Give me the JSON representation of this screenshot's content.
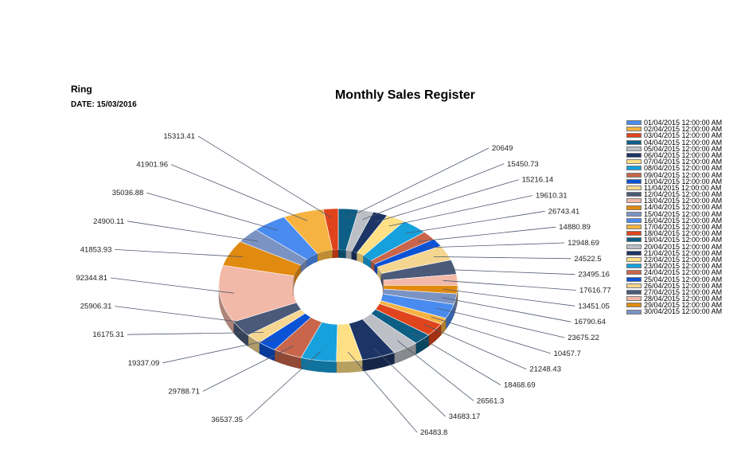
{
  "report": {
    "name": "Ring",
    "date_label": "DATE:",
    "date_value": "15/03/2016"
  },
  "chart_data": {
    "type": "pie",
    "variant": "3d-doughnut",
    "title": "Monthly Sales Register",
    "legend_position": "right",
    "categories": [
      "01/04/2015 12:00:00 AM",
      "02/04/2015 12:00:00 AM",
      "03/04/2015 12:00:00 AM",
      "04/04/2015 12:00:00 AM",
      "05/04/2015 12:00:00 AM",
      "06/04/2015 12:00:00 AM",
      "07/04/2015 12:00:00 AM",
      "08/04/2015 12:00:00 AM",
      "09/04/2015 12:00:00 AM",
      "10/04/2015 12:00:00 AM",
      "11/04/2015 12:00:00 AM",
      "12/04/2015 12:00:00 AM",
      "13/04/2015 12:00:00 AM",
      "14/04/2015 12:00:00 AM",
      "15/04/2015 12:00:00 AM",
      "16/04/2015 12:00:00 AM",
      "17/04/2015 12:00:00 AM",
      "18/04/2015 12:00:00 AM",
      "19/04/2015 12:00:00 AM",
      "20/04/2015 12:00:00 AM",
      "21/04/2015 12:00:00 AM",
      "22/04/2015 12:00:00 AM",
      "23/04/2015 12:00:00 AM",
      "24/04/2015 12:00:00 AM",
      "25/04/2015 12:00:00 AM",
      "26/04/2015 12:00:00 AM",
      "27/04/2015 12:00:00 AM",
      "28/04/2015 12:00:00 AM",
      "29/04/2015 12:00:00 AM",
      "30/04/2015 12:00:00 AM"
    ],
    "values": [
      20649,
      15450.73,
      15216.14,
      19610.31,
      26743.41,
      14880.89,
      12948.69,
      24522.5,
      23495.16,
      17616.77,
      13451.05,
      16790.64,
      23675.22,
      10457.7,
      21248.43,
      18468.69,
      26561.3,
      34683.17,
      26483.8,
      36537.35,
      29788.71,
      19337.09,
      16175.31,
      25906.31,
      92344.81,
      41853.93,
      24900.11,
      35036.88,
      41901.96,
      15313.41
    ],
    "value_labels": [
      "20649",
      "15450.73",
      "15216.14",
      "19610.31",
      "26743.41",
      "14880.89",
      "12948.69",
      "24522.5",
      "23495.16",
      "17616.77",
      "13451.05",
      "16790.64",
      "23675.22",
      "10457.7",
      "21248.43",
      "18468.69",
      "26561.3",
      "34683.17",
      "26483.8",
      "36537.35",
      "29788.71",
      "19337.09",
      "16175.31",
      "25906.31",
      "92344.81",
      "41853.93",
      "24900.11",
      "35036.88",
      "41901.96",
      "15313.41"
    ],
    "colors": [
      "#0d5f86",
      "#bcc0c6",
      "#1d3566",
      "#ffe085",
      "#16a0dc",
      "#c8654a",
      "#0a52d6",
      "#f5d690",
      "#4a5a78",
      "#f2b8a8",
      "#e08a10",
      "#7b93c3",
      "#4a8bef",
      "#f6b341",
      "#e0441c",
      "#0d5f86",
      "#bcc0c6",
      "#1d3566",
      "#ffe085",
      "#16a0dc",
      "#c8654a",
      "#0a52d6",
      "#f5d690",
      "#4a5a78",
      "#f2b8a8",
      "#e08a10",
      "#7b93c3",
      "#4a8bef",
      "#f6b341",
      "#e0441c"
    ],
    "legend": [
      {
        "label": "01/04/2015 12:00:00 AM",
        "color": "#4a8bef"
      },
      {
        "label": "02/04/2015 12:00:00 AM",
        "color": "#f6b341"
      },
      {
        "label": "03/04/2015 12:00:00 AM",
        "color": "#e0441c"
      },
      {
        "label": "04/04/2015 12:00:00 AM",
        "color": "#0d5f86"
      },
      {
        "label": "05/04/2015 12:00:00 AM",
        "color": "#bcc0c6"
      },
      {
        "label": "06/04/2015 12:00:00 AM",
        "color": "#1d3566"
      },
      {
        "label": "07/04/2015 12:00:00 AM",
        "color": "#ffe085"
      },
      {
        "label": "08/04/2015 12:00:00 AM",
        "color": "#16a0dc"
      },
      {
        "label": "09/04/2015 12:00:00 AM",
        "color": "#c8654a"
      },
      {
        "label": "10/04/2015 12:00:00 AM",
        "color": "#0a52d6"
      },
      {
        "label": "11/04/2015 12:00:00 AM",
        "color": "#f5d690"
      },
      {
        "label": "12/04/2015 12:00:00 AM",
        "color": "#4a5a78"
      },
      {
        "label": "13/04/2015 12:00:00 AM",
        "color": "#f2b8a8"
      },
      {
        "label": "14/04/2015 12:00:00 AM",
        "color": "#e08a10"
      },
      {
        "label": "15/04/2015 12:00:00 AM",
        "color": "#7b93c3"
      },
      {
        "label": "16/04/2015 12:00:00 AM",
        "color": "#4a8bef"
      },
      {
        "label": "17/04/2015 12:00:00 AM",
        "color": "#f6b341"
      },
      {
        "label": "18/04/2015 12:00:00 AM",
        "color": "#e0441c"
      },
      {
        "label": "19/04/2015 12:00:00 AM",
        "color": "#0d5f86"
      },
      {
        "label": "20/04/2015 12:00:00 AM",
        "color": "#bcc0c6"
      },
      {
        "label": "21/04/2015 12:00:00 AM",
        "color": "#1d3566"
      },
      {
        "label": "22/04/2015 12:00:00 AM",
        "color": "#ffe085"
      },
      {
        "label": "23/04/2015 12:00:00 AM",
        "color": "#16a0dc"
      },
      {
        "label": "24/04/2015 12:00:00 AM",
        "color": "#c8654a"
      },
      {
        "label": "25/04/2015 12:00:00 AM",
        "color": "#0a52d6"
      },
      {
        "label": "26/04/2015 12:00:00 AM",
        "color": "#f5d690"
      },
      {
        "label": "27/04/2015 12:00:00 AM",
        "color": "#4a5a78"
      },
      {
        "label": "28/04/2015 12:00:00 AM",
        "color": "#f2b8a8"
      },
      {
        "label": "29/04/2015 12:00:00 AM",
        "color": "#e08a10"
      },
      {
        "label": "30/04/2015 12:00:00 AM",
        "color": "#7b93c3"
      }
    ]
  }
}
